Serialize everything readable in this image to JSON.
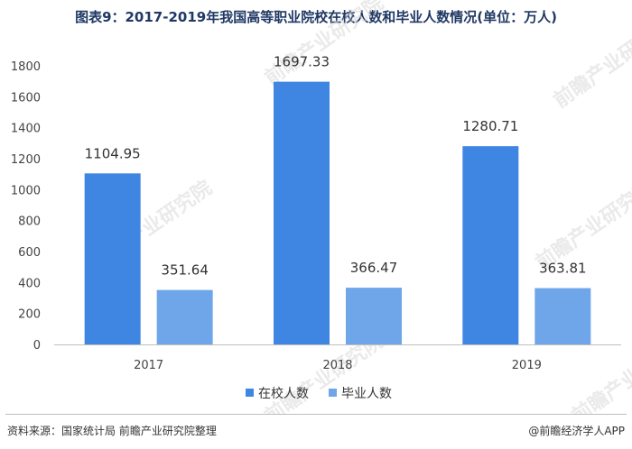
{
  "page": {
    "title": "图表9：2017-2019年我国高等职业院校在校人数和毕业人数情况(单位：万人)",
    "source": "资料来源：国家统计局 前瞻产业研究院整理",
    "app_credit": "@前瞻经济学人APP",
    "watermark": "前瞻产业研究院"
  },
  "chart_data": {
    "type": "bar",
    "title": "图表9：2017-2019年我国高等职业院校在校人数和毕业人数情况(单位：万人)",
    "categories": [
      "2017",
      "2018",
      "2019"
    ],
    "series": [
      {
        "name": "在校人数",
        "values": [
          1104.95,
          1697.33,
          1280.71
        ],
        "color": "#3f86e3"
      },
      {
        "name": "毕业人数",
        "values": [
          351.64,
          366.47,
          363.81
        ],
        "color": "#6fa6ea"
      }
    ],
    "ylim": [
      0,
      1800
    ],
    "yticks": [
      0,
      200,
      400,
      600,
      800,
      1000,
      1200,
      1400,
      1600,
      1800
    ],
    "grid": false,
    "legend": "bottom"
  }
}
